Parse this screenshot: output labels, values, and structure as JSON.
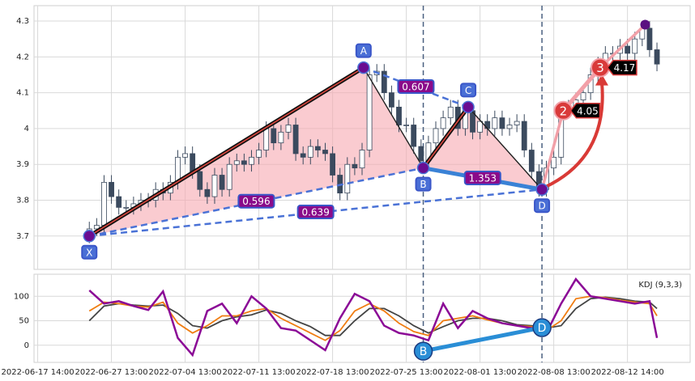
{
  "chart_data": [
    {
      "type": "candlestick",
      "x": [
        7,
        8,
        9,
        10,
        11,
        12,
        13,
        14,
        15,
        16,
        17,
        18,
        19,
        20,
        21,
        22,
        23,
        24,
        25,
        26,
        27,
        28,
        29,
        30,
        31,
        32,
        33,
        34,
        35,
        36,
        37,
        38,
        39,
        40,
        41,
        42,
        43,
        44,
        45,
        46,
        47,
        48,
        49,
        50,
        51,
        52,
        53,
        54,
        55,
        56,
        57,
        58,
        59,
        60,
        61,
        62,
        63,
        64,
        65,
        66,
        67,
        68,
        69,
        70,
        71,
        72,
        73,
        74,
        75,
        76,
        77,
        78,
        79,
        80,
        81,
        82,
        83,
        84
      ],
      "open": [
        3.7,
        3.72,
        3.73,
        3.85,
        3.81,
        3.78,
        3.78,
        3.79,
        3.8,
        3.8,
        3.83,
        3.82,
        3.85,
        3.92,
        3.93,
        3.88,
        3.83,
        3.81,
        3.87,
        3.83,
        3.9,
        3.91,
        3.9,
        3.92,
        3.94,
        4.0,
        3.96,
        3.99,
        4.01,
        3.93,
        3.92,
        3.95,
        3.94,
        3.93,
        3.87,
        3.82,
        3.9,
        3.89,
        3.94,
        4.15,
        4.16,
        4.1,
        4.06,
        4.01,
        4.01,
        3.95,
        3.91,
        3.96,
        4.0,
        4.03,
        4.06,
        4.0,
        4.05,
        3.99,
        4.02,
        4.0,
        4.03,
        4.0,
        4.01,
        4.02,
        3.94,
        3.88,
        3.83,
        3.89,
        3.92,
        4.05,
        4.06,
        4.08,
        4.1,
        4.15,
        4.18,
        4.21,
        4.21,
        4.23,
        4.21,
        4.25,
        4.28,
        4.22
      ],
      "high": [
        3.74,
        3.75,
        3.87,
        3.87,
        3.83,
        3.8,
        3.81,
        3.82,
        3.82,
        3.85,
        3.85,
        3.87,
        3.94,
        3.95,
        3.95,
        3.9,
        3.85,
        3.89,
        3.89,
        3.92,
        3.93,
        3.93,
        3.94,
        3.96,
        4.02,
        4.02,
        4.01,
        4.03,
        4.03,
        3.95,
        3.97,
        3.97,
        3.96,
        3.95,
        3.89,
        3.92,
        3.92,
        3.96,
        4.17,
        4.18,
        4.18,
        4.12,
        4.08,
        4.03,
        4.03,
        3.97,
        3.98,
        4.02,
        4.05,
        4.08,
        4.08,
        4.07,
        4.07,
        4.04,
        4.04,
        4.05,
        4.05,
        4.03,
        4.04,
        4.04,
        3.96,
        3.9,
        3.91,
        3.94,
        4.07,
        4.08,
        4.1,
        4.12,
        4.17,
        4.2,
        4.23,
        4.23,
        4.25,
        4.25,
        4.27,
        4.3,
        4.3,
        4.24
      ],
      "low": [
        3.68,
        3.7,
        3.71,
        3.79,
        3.76,
        3.76,
        3.76,
        3.77,
        3.78,
        3.78,
        3.8,
        3.8,
        3.83,
        3.9,
        3.86,
        3.81,
        3.79,
        3.79,
        3.81,
        3.81,
        3.88,
        3.88,
        3.88,
        3.9,
        3.92,
        3.94,
        3.94,
        3.97,
        3.91,
        3.9,
        3.9,
        3.92,
        3.91,
        3.85,
        3.8,
        3.8,
        3.87,
        3.87,
        3.92,
        4.13,
        4.08,
        4.04,
        3.99,
        3.99,
        3.93,
        3.89,
        3.89,
        3.94,
        3.98,
        4.01,
        3.98,
        3.98,
        3.97,
        3.97,
        3.98,
        3.98,
        3.98,
        3.98,
        3.99,
        3.92,
        3.86,
        3.81,
        3.81,
        3.87,
        3.9,
        4.03,
        4.04,
        4.06,
        4.08,
        4.13,
        4.16,
        4.19,
        4.19,
        4.19,
        4.19,
        4.23,
        4.2,
        4.16
      ],
      "close": [
        3.72,
        3.73,
        3.85,
        3.81,
        3.78,
        3.78,
        3.79,
        3.8,
        3.8,
        3.83,
        3.82,
        3.85,
        3.92,
        3.93,
        3.88,
        3.83,
        3.81,
        3.87,
        3.83,
        3.9,
        3.91,
        3.9,
        3.92,
        3.94,
        4.0,
        3.96,
        3.99,
        4.01,
        3.93,
        3.92,
        3.95,
        3.94,
        3.93,
        3.87,
        3.82,
        3.9,
        3.89,
        3.94,
        4.15,
        4.16,
        4.1,
        4.06,
        4.01,
        4.01,
        3.95,
        3.91,
        3.96,
        4.0,
        4.03,
        4.06,
        4.0,
        4.05,
        3.99,
        4.02,
        4.0,
        4.03,
        4.0,
        4.01,
        4.02,
        3.94,
        3.88,
        3.83,
        3.89,
        3.92,
        4.05,
        4.06,
        4.08,
        4.1,
        4.15,
        4.18,
        4.21,
        4.21,
        4.23,
        4.21,
        4.25,
        4.28,
        4.22,
        4.18
      ],
      "up_color": "#ffffff",
      "down_color": "#3b4a5e",
      "edge_color": "#3b4a5e",
      "xlim": [
        -0.5,
        88.5
      ],
      "xticks": [
        {
          "value": 0,
          "label": "2022-06-17 14:00"
        },
        {
          "value": 10,
          "label": "2022-06-27 13:00"
        },
        {
          "value": 20,
          "label": "2022-07-04 13:00"
        },
        {
          "value": 30,
          "label": "2022-07-11 13:00"
        },
        {
          "value": 40,
          "label": "2022-07-18 13:00"
        },
        {
          "value": 50,
          "label": "2022-07-25 13:00"
        },
        {
          "value": 60,
          "label": "2022-08-01 13:00"
        },
        {
          "value": 70,
          "label": "2022-08-08 13:00"
        },
        {
          "value": 80,
          "label": "2022-08-12 14:00"
        }
      ],
      "ylim": [
        3.607,
        4.343
      ],
      "yticks": [
        3.7,
        3.8,
        3.9,
        4.0,
        4.1,
        4.2,
        4.3
      ],
      "grid": true,
      "pattern": [
        {
          "label": "X",
          "x": 7,
          "y": 3.7
        },
        {
          "label": "A",
          "x": 44.2,
          "y": 4.17
        },
        {
          "label": "B",
          "x": 52.3,
          "y": 3.89
        },
        {
          "label": "C",
          "x": 58.4,
          "y": 4.06
        },
        {
          "label": "D",
          "x": 68.4,
          "y": 3.83
        }
      ],
      "ratios": [
        0.607,
        0.596,
        0.639,
        1.353
      ],
      "projections": [
        {
          "label": 2,
          "x": 71.3,
          "value": 4.05
        },
        {
          "label": 3,
          "x": 76.3,
          "value": 4.17
        }
      ],
      "target": {
        "x": 82.4,
        "y": 4.29
      }
    },
    {
      "type": "line",
      "title": "KDJ (9,3,3)",
      "x": [
        7,
        9,
        11,
        13,
        15,
        17,
        19,
        21,
        23,
        25,
        27,
        29,
        31,
        33,
        35,
        37,
        39,
        41,
        43,
        45,
        47,
        49,
        51,
        53,
        55,
        57,
        59,
        61,
        63,
        65,
        67,
        69,
        71,
        73,
        75,
        77,
        79,
        81,
        83,
        84
      ],
      "series": [
        {
          "color": "#444444",
          "values": [
            50,
            80,
            85,
            82,
            80,
            82,
            65,
            40,
            35,
            50,
            58,
            62,
            72,
            65,
            50,
            38,
            20,
            20,
            50,
            75,
            75,
            60,
            40,
            25,
            38,
            50,
            55,
            55,
            50,
            42,
            40,
            35,
            40,
            75,
            95,
            98,
            95,
            90,
            88,
            75
          ]
        },
        {
          "color": "#f07d12",
          "values": [
            70,
            88,
            85,
            80,
            78,
            88,
            45,
            25,
            40,
            60,
            60,
            70,
            75,
            55,
            40,
            25,
            10,
            30,
            70,
            85,
            70,
            45,
            28,
            20,
            50,
            55,
            60,
            52,
            45,
            40,
            38,
            30,
            50,
            95,
            100,
            97,
            92,
            88,
            85,
            60
          ]
        },
        {
          "color": "#8b0a96",
          "values": [
            112,
            85,
            90,
            80,
            72,
            110,
            15,
            -20,
            70,
            85,
            45,
            100,
            75,
            35,
            30,
            10,
            -10,
            55,
            105,
            90,
            40,
            25,
            20,
            10,
            85,
            35,
            70,
            55,
            45,
            40,
            35,
            25,
            85,
            135,
            100,
            95,
            90,
            85,
            90,
            15
          ]
        }
      ],
      "xlim": [
        -0.5,
        88.5
      ],
      "ylim": [
        -35,
        145
      ],
      "yticks": [
        0,
        50,
        100
      ],
      "grid": true,
      "points": [
        {
          "label": "B",
          "x": 52.3,
          "y": -12
        },
        {
          "label": "D",
          "x": 68.4,
          "y": 36
        }
      ]
    }
  ]
}
